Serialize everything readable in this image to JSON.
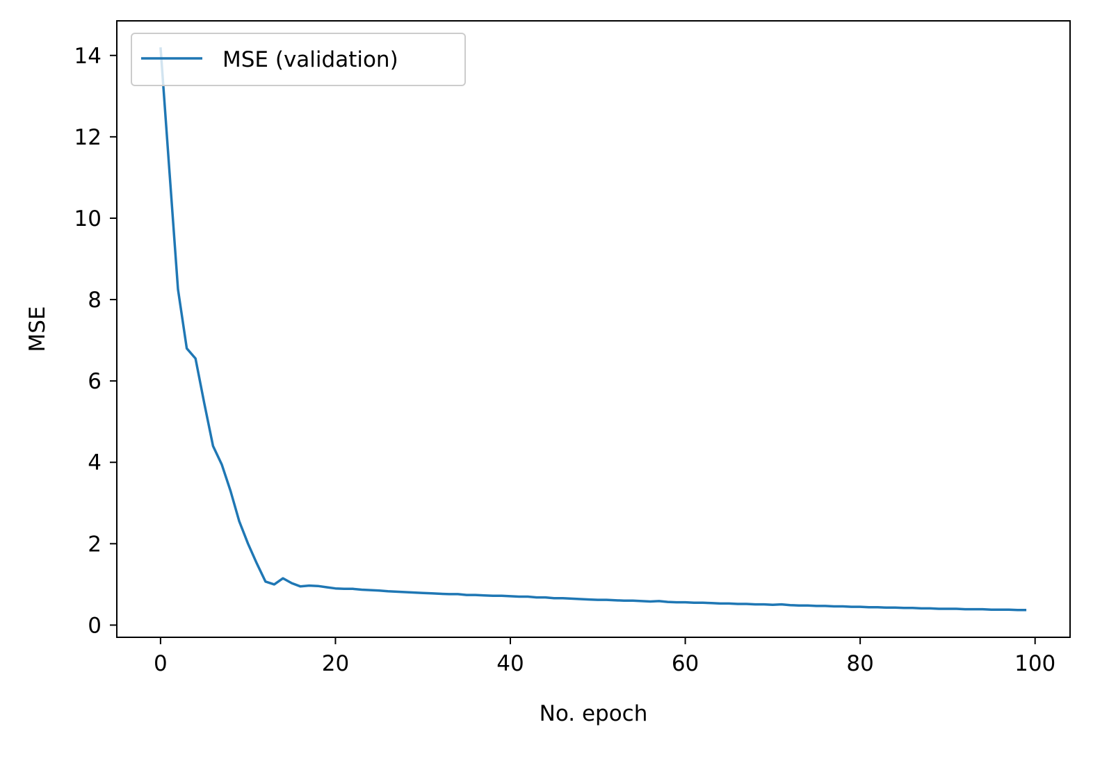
{
  "chart_data": {
    "type": "line",
    "xlabel": "No. epoch",
    "ylabel": "MSE",
    "xlim": [
      -5,
      104
    ],
    "ylim": [
      -0.3,
      14.85
    ],
    "xticks": [
      0,
      20,
      40,
      60,
      80,
      100
    ],
    "yticks": [
      0,
      2,
      4,
      6,
      8,
      10,
      12,
      14
    ],
    "grid": false,
    "legend_position": "top-left",
    "series": [
      {
        "name": "MSE (validation)",
        "color": "#1f77b4",
        "x": [
          0,
          1,
          2,
          3,
          4,
          5,
          6,
          7,
          8,
          9,
          10,
          11,
          12,
          13,
          14,
          15,
          16,
          17,
          18,
          19,
          20,
          21,
          22,
          23,
          24,
          25,
          26,
          27,
          28,
          29,
          30,
          31,
          32,
          33,
          34,
          35,
          36,
          37,
          38,
          39,
          40,
          41,
          42,
          43,
          44,
          45,
          46,
          47,
          48,
          49,
          50,
          51,
          52,
          53,
          54,
          55,
          56,
          57,
          58,
          59,
          60,
          61,
          62,
          63,
          64,
          65,
          66,
          67,
          68,
          69,
          70,
          71,
          72,
          73,
          74,
          75,
          76,
          77,
          78,
          79,
          80,
          81,
          82,
          83,
          84,
          85,
          86,
          87,
          88,
          89,
          90,
          91,
          92,
          93,
          94,
          95,
          96,
          97,
          98,
          99
        ],
        "y": [
          14.2,
          11.2,
          8.25,
          6.8,
          6.55,
          5.45,
          4.4,
          3.95,
          3.3,
          2.55,
          2.0,
          1.52,
          1.07,
          1.0,
          1.15,
          1.03,
          0.95,
          0.97,
          0.96,
          0.93,
          0.9,
          0.89,
          0.89,
          0.87,
          0.86,
          0.85,
          0.83,
          0.82,
          0.81,
          0.8,
          0.79,
          0.78,
          0.77,
          0.76,
          0.76,
          0.74,
          0.74,
          0.73,
          0.72,
          0.72,
          0.71,
          0.7,
          0.7,
          0.68,
          0.68,
          0.66,
          0.66,
          0.65,
          0.64,
          0.63,
          0.62,
          0.62,
          0.61,
          0.6,
          0.6,
          0.59,
          0.58,
          0.59,
          0.57,
          0.56,
          0.56,
          0.55,
          0.55,
          0.54,
          0.53,
          0.53,
          0.52,
          0.52,
          0.51,
          0.51,
          0.5,
          0.51,
          0.49,
          0.48,
          0.48,
          0.47,
          0.47,
          0.46,
          0.46,
          0.45,
          0.45,
          0.44,
          0.44,
          0.43,
          0.43,
          0.42,
          0.42,
          0.41,
          0.41,
          0.4,
          0.4,
          0.4,
          0.39,
          0.39,
          0.39,
          0.38,
          0.38,
          0.38,
          0.37,
          0.37
        ]
      }
    ]
  }
}
